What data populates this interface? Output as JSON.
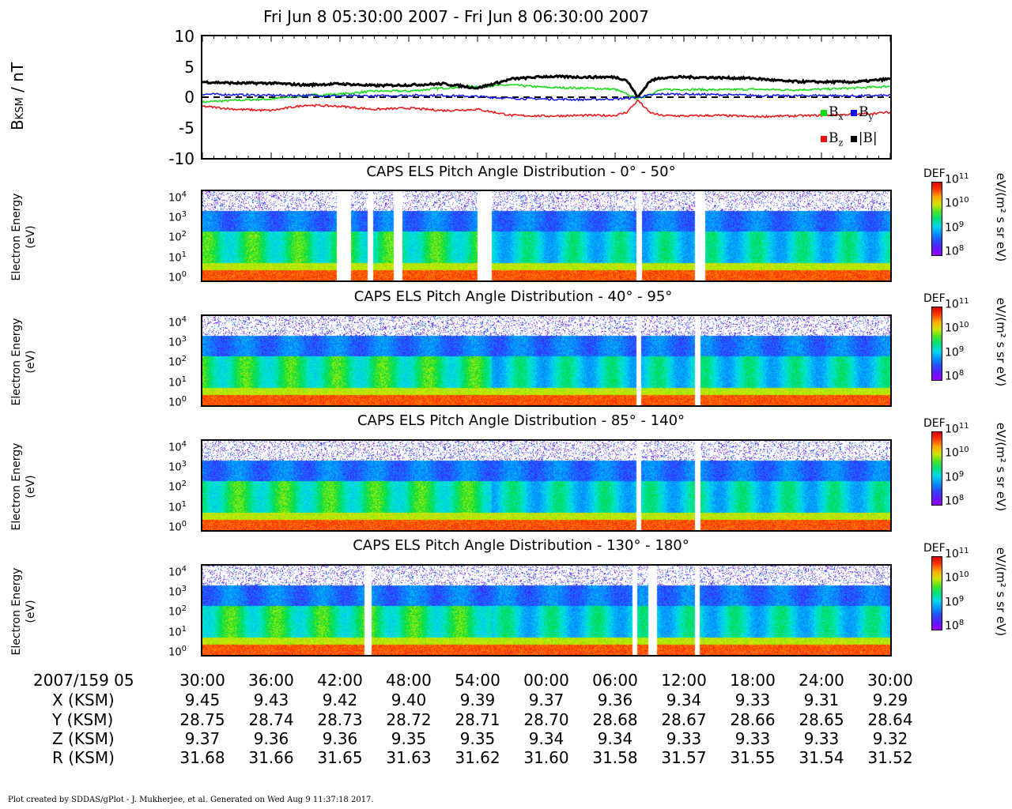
{
  "title": "Fri Jun  8 05:30:00 2007 - Fri Jun  8 06:30:00 2007",
  "colors": {
    "bx": "#11dd11",
    "by": "#1111ee",
    "bz": "#ee1111",
    "bmag": "#000000"
  },
  "mag_panel": {
    "ylabel_main": "B",
    "ylabel_sub": "KSM",
    "ylabel_unit": " / nT",
    "yticks": [
      "10",
      "5",
      "0",
      "-5",
      "-10"
    ],
    "legend": [
      {
        "key": "bx",
        "label": "B",
        "sub": "x"
      },
      {
        "key": "by",
        "label": "B",
        "sub": "y"
      },
      {
        "key": "bz",
        "label": "B",
        "sub": "z"
      },
      {
        "key": "bmag",
        "label": "|B|",
        "sub": ""
      }
    ]
  },
  "spectro_panels": [
    {
      "title": "CAPS ELS Pitch Angle Distribution - 0° - 50°"
    },
    {
      "title": "CAPS ELS Pitch Angle Distribution - 40° - 95°"
    },
    {
      "title": "CAPS ELS Pitch Angle Distribution - 85° - 140°"
    },
    {
      "title": "CAPS ELS Pitch Angle Distribution - 130° - 180°"
    }
  ],
  "energy_axis": {
    "label_line1": "Electron Energy",
    "label_line2": "(eV)",
    "ticks": [
      "10",
      "10",
      "10",
      "10",
      "10"
    ],
    "exps": [
      "4",
      "3",
      "2",
      "1",
      "0"
    ]
  },
  "colorbar": {
    "label": "DEF",
    "unit": "eV/(m² s sr eV)",
    "ticks": [
      "10",
      "10",
      "10",
      "10"
    ],
    "exps": [
      "11",
      "10",
      "9",
      "8"
    ]
  },
  "time_axis": {
    "row_label": "2007/159 05",
    "ticks": [
      "30:00",
      "36:00",
      "42:00",
      "48:00",
      "54:00",
      "00:00",
      "06:00",
      "12:00",
      "18:00",
      "24:00",
      "30:00"
    ]
  },
  "ephemeris": [
    {
      "label": "X (KSM)",
      "values": [
        "9.45",
        "9.43",
        "9.42",
        "9.40",
        "9.39",
        "9.37",
        "9.36",
        "9.34",
        "9.33",
        "9.31",
        "9.29"
      ]
    },
    {
      "label": "Y (KSM)",
      "values": [
        "28.75",
        "28.74",
        "28.73",
        "28.72",
        "28.71",
        "28.70",
        "28.68",
        "28.67",
        "28.66",
        "28.65",
        "28.64"
      ]
    },
    {
      "label": "Z (KSM)",
      "values": [
        "9.37",
        "9.36",
        "9.36",
        "9.35",
        "9.35",
        "9.34",
        "9.34",
        "9.33",
        "9.33",
        "9.33",
        "9.32"
      ]
    },
    {
      "label": "R (KSM)",
      "values": [
        "31.68",
        "31.66",
        "31.65",
        "31.63",
        "31.62",
        "31.60",
        "31.58",
        "31.57",
        "31.55",
        "31.54",
        "31.52"
      ]
    }
  ],
  "footer": "Plot created by SDDAS/gPlot - J. Mukherjee, et al.  Generated on Wed Aug  9 11:37:18 2017.",
  "chart_data": [
    {
      "type": "line",
      "title": "Fri Jun  8 05:30:00 2007 - Fri Jun  8 06:30:00 2007",
      "xlabel": "",
      "ylabel": "B KSM / nT",
      "ylim": [
        -10,
        10
      ],
      "x_minutes": [
        0,
        3,
        6,
        9,
        12,
        15,
        18,
        21,
        24,
        27,
        30,
        33,
        36,
        37,
        38,
        39,
        40,
        42,
        45,
        48,
        51,
        54,
        57,
        60
      ],
      "series": [
        {
          "name": "Bx",
          "key": "bx",
          "values": [
            -0.8,
            -0.5,
            -0.3,
            0.3,
            0.5,
            1.0,
            1.0,
            1.5,
            1.8,
            2.0,
            1.6,
            1.5,
            1.3,
            0.5,
            -0.3,
            0.5,
            1.2,
            1.3,
            1.2,
            1.3,
            1.2,
            1.3,
            1.5,
            1.8
          ]
        },
        {
          "name": "By",
          "key": "by",
          "values": [
            0.5,
            0.4,
            0.3,
            0.3,
            0.2,
            0.2,
            0.3,
            0.3,
            0.1,
            -0.2,
            -0.3,
            -0.4,
            -0.3,
            -0.2,
            0.0,
            0.3,
            0.5,
            0.5,
            0.4,
            0.3,
            0.2,
            0.3,
            0.2,
            0.3
          ]
        },
        {
          "name": "Bz",
          "key": "bz",
          "values": [
            -1.5,
            -2.0,
            -2.2,
            -1.3,
            -1.5,
            -2.0,
            -1.8,
            -2.2,
            -2.0,
            -3.0,
            -3.1,
            -3.0,
            -3.0,
            -2.5,
            -0.5,
            -2.5,
            -3.0,
            -3.1,
            -3.0,
            -3.2,
            -3.1,
            -3.0,
            -2.8,
            -2.5
          ]
        },
        {
          "name": "|B|",
          "key": "bmag",
          "values": [
            2.5,
            2.3,
            2.3,
            2.0,
            2.2,
            1.9,
            2.0,
            2.2,
            1.5,
            3.0,
            3.4,
            3.3,
            3.3,
            2.8,
            0.0,
            2.6,
            3.2,
            3.3,
            3.2,
            3.1,
            2.6,
            2.5,
            2.5,
            3.0
          ]
        }
      ]
    },
    {
      "type": "heatmap",
      "title": "CAPS ELS Pitch Angle Distribution",
      "xlabel": "2007/159 05",
      "ylabel": "Electron Energy (eV)",
      "y_scale": "log",
      "ylim_eV": [
        0.7,
        20000
      ],
      "zlabel": "DEF eV/(m² s sr eV)",
      "zlim": [
        100000000.0,
        100000000000.0
      ],
      "panels": [
        "0° - 50°",
        "40° - 95°",
        "85° - 140°",
        "130° - 180°"
      ]
    }
  ]
}
